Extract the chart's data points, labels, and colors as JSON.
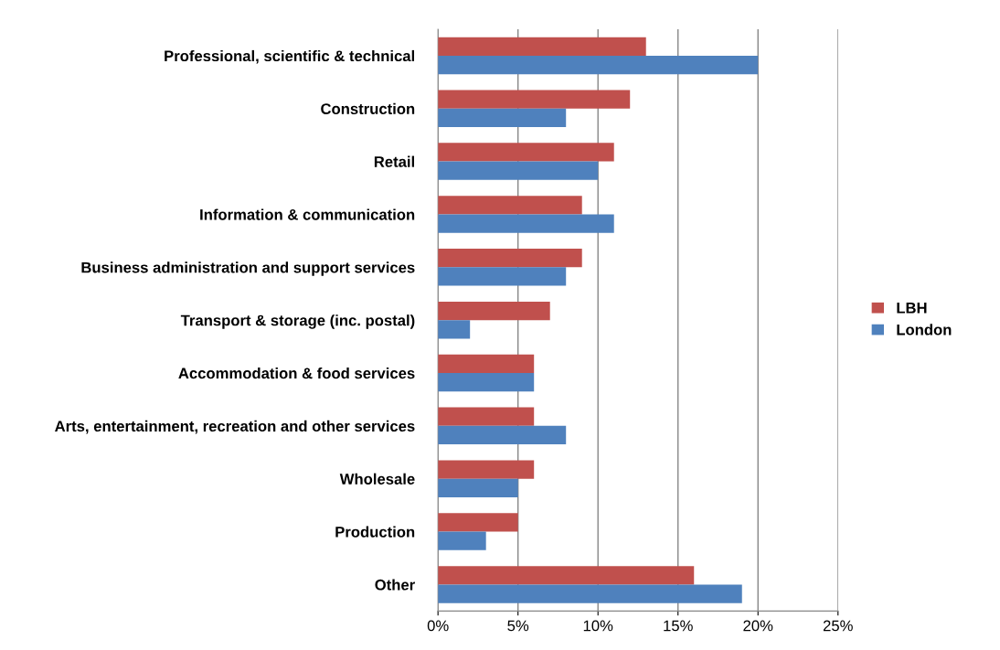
{
  "chart_data": {
    "type": "bar",
    "orientation": "horizontal",
    "categories": [
      "Professional, scientific & technical",
      "Construction",
      "Retail",
      "Information & communication",
      "Business administration and support services",
      "Transport & storage (inc. postal)",
      "Accommodation & food services",
      "Arts, entertainment, recreation and other services",
      "Wholesale",
      "Production",
      "Other"
    ],
    "series": [
      {
        "name": "LBH",
        "color": "#c0504d",
        "values": [
          13,
          12,
          11,
          9,
          9,
          7,
          6,
          6,
          6,
          5,
          16
        ]
      },
      {
        "name": "London",
        "color": "#4f81bd",
        "values": [
          20,
          8,
          10,
          11,
          8,
          2,
          6,
          8,
          5,
          3,
          19
        ]
      }
    ],
    "xlim": [
      0,
      25
    ],
    "xticks": [
      {
        "value": 0,
        "label": "0%"
      },
      {
        "value": 5,
        "label": "5%"
      },
      {
        "value": 10,
        "label": "10%"
      },
      {
        "value": 15,
        "label": "15%"
      },
      {
        "value": 20,
        "label": "20%"
      },
      {
        "value": 25,
        "label": "25%"
      }
    ],
    "grid": "x",
    "legend": "right"
  }
}
